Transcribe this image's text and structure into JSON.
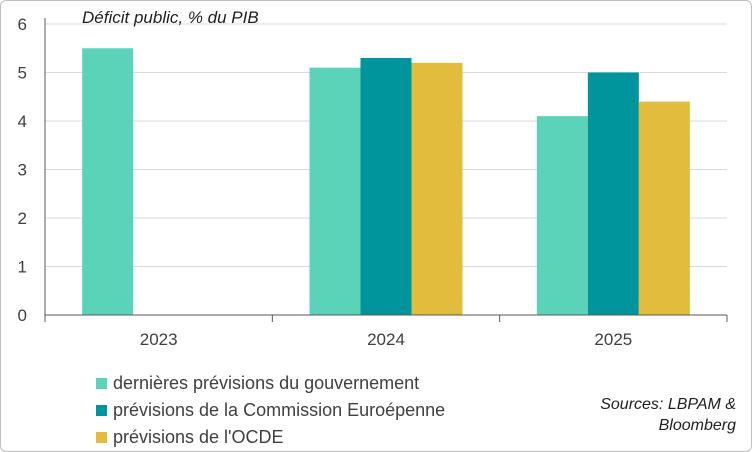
{
  "chart_data": {
    "type": "bar",
    "title": "Déficit public, % du PIB",
    "categories": [
      "2023",
      "2024",
      "2025"
    ],
    "ylim": [
      0,
      6
    ],
    "yticks": [
      0,
      1,
      2,
      3,
      4,
      5,
      6
    ],
    "grid": true,
    "series": [
      {
        "name": "dernières prévisions du gouvernement",
        "color": "#5ad3b9",
        "values": [
          5.5,
          5.1,
          4.1
        ]
      },
      {
        "name": "prévisions de la Commission Euroépenne",
        "color": "#00959c",
        "values": [
          null,
          5.3,
          5.0
        ]
      },
      {
        "name": "prévisions de l'OCDE",
        "color": "#e2bc3d",
        "values": [
          null,
          5.2,
          4.4
        ]
      }
    ],
    "legend_position": "bottom-left",
    "source": {
      "line1": "Sources: LBPAM &",
      "line2": "Bloomberg"
    }
  }
}
